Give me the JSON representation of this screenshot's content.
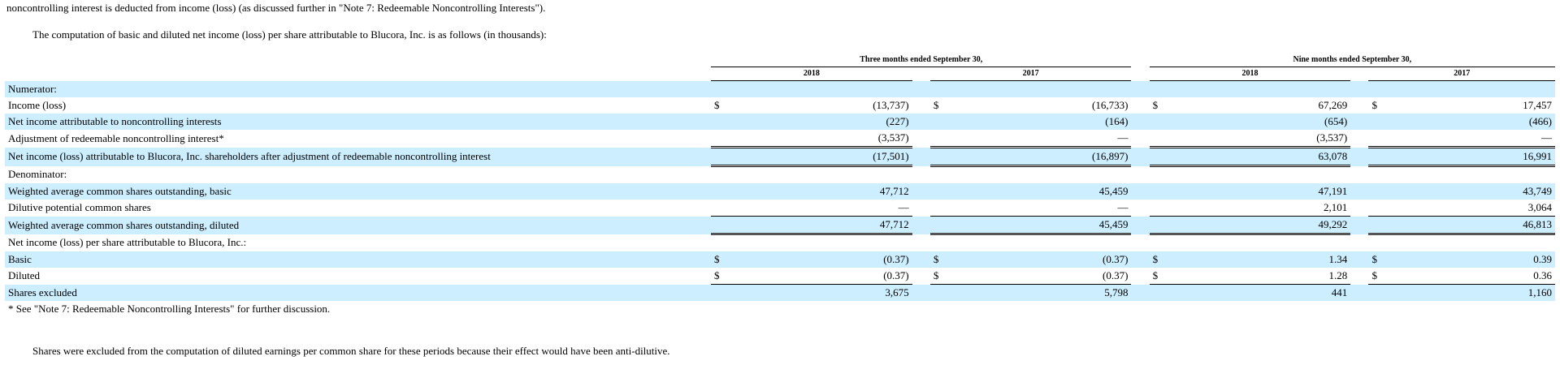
{
  "intro_top": "noncontrolling interest is deducted from income (loss) (as discussed further in \"Note 7: Redeemable Noncontrolling Interests\").",
  "intro_computation": "The computation of basic and diluted net income (loss) per share attributable to Blucora, Inc. is as follows (in thousands):",
  "table": {
    "periods": [
      "Three months ended September 30,",
      "Nine months ended September 30,"
    ],
    "years": [
      "2018",
      "2017",
      "2018",
      "2017"
    ],
    "currency_symbol": "$",
    "rows": {
      "numerator": {
        "label": "Numerator:"
      },
      "income_loss": {
        "label": "Income (loss)",
        "values": [
          "(13,737)",
          "(16,733)",
          "67,269",
          "17,457"
        ]
      },
      "nci": {
        "label": "Net income attributable to noncontrolling interests",
        "values": [
          "(227)",
          "(164)",
          "(654)",
          "(466)"
        ]
      },
      "adj_rnci": {
        "label": "Adjustment of redeemable noncontrolling interest*",
        "values": [
          "(3,537)",
          "—",
          "(3,537)",
          "—"
        ]
      },
      "net_income_blucora": {
        "label": "Net income (loss) attributable to Blucora, Inc. shareholders after adjustment of redeemable noncontrolling interest",
        "values": [
          "(17,501)",
          "(16,897)",
          "63,078",
          "16,991"
        ]
      },
      "denominator": {
        "label": "Denominator:"
      },
      "wtd_basic": {
        "label": "Weighted average common shares outstanding, basic",
        "values": [
          "47,712",
          "45,459",
          "47,191",
          "43,749"
        ]
      },
      "dilutive": {
        "label": "Dilutive potential common shares",
        "values": [
          "—",
          "—",
          "2,101",
          "3,064"
        ]
      },
      "wtd_diluted": {
        "label": "Weighted average common shares outstanding, diluted",
        "values": [
          "47,712",
          "45,459",
          "49,292",
          "46,813"
        ]
      },
      "per_share": {
        "label": "Net income (loss) per share attributable to Blucora, Inc.:"
      },
      "basic": {
        "label": "Basic",
        "values": [
          "(0.37)",
          "(0.37)",
          "1.34",
          "0.39"
        ]
      },
      "diluted": {
        "label": "Diluted",
        "values": [
          "(0.37)",
          "(0.37)",
          "1.28",
          "0.36"
        ]
      },
      "shares_excluded": {
        "label": "Shares excluded",
        "values": [
          "3,675",
          "5,798",
          "441",
          "1,160"
        ]
      }
    },
    "footnote": "* See \"Note 7: Redeemable Noncontrolling Interests\" for further discussion."
  },
  "footer_para": "Shares were excluded from the computation of diluted earnings per common share for these periods because their effect would have been anti-dilutive."
}
